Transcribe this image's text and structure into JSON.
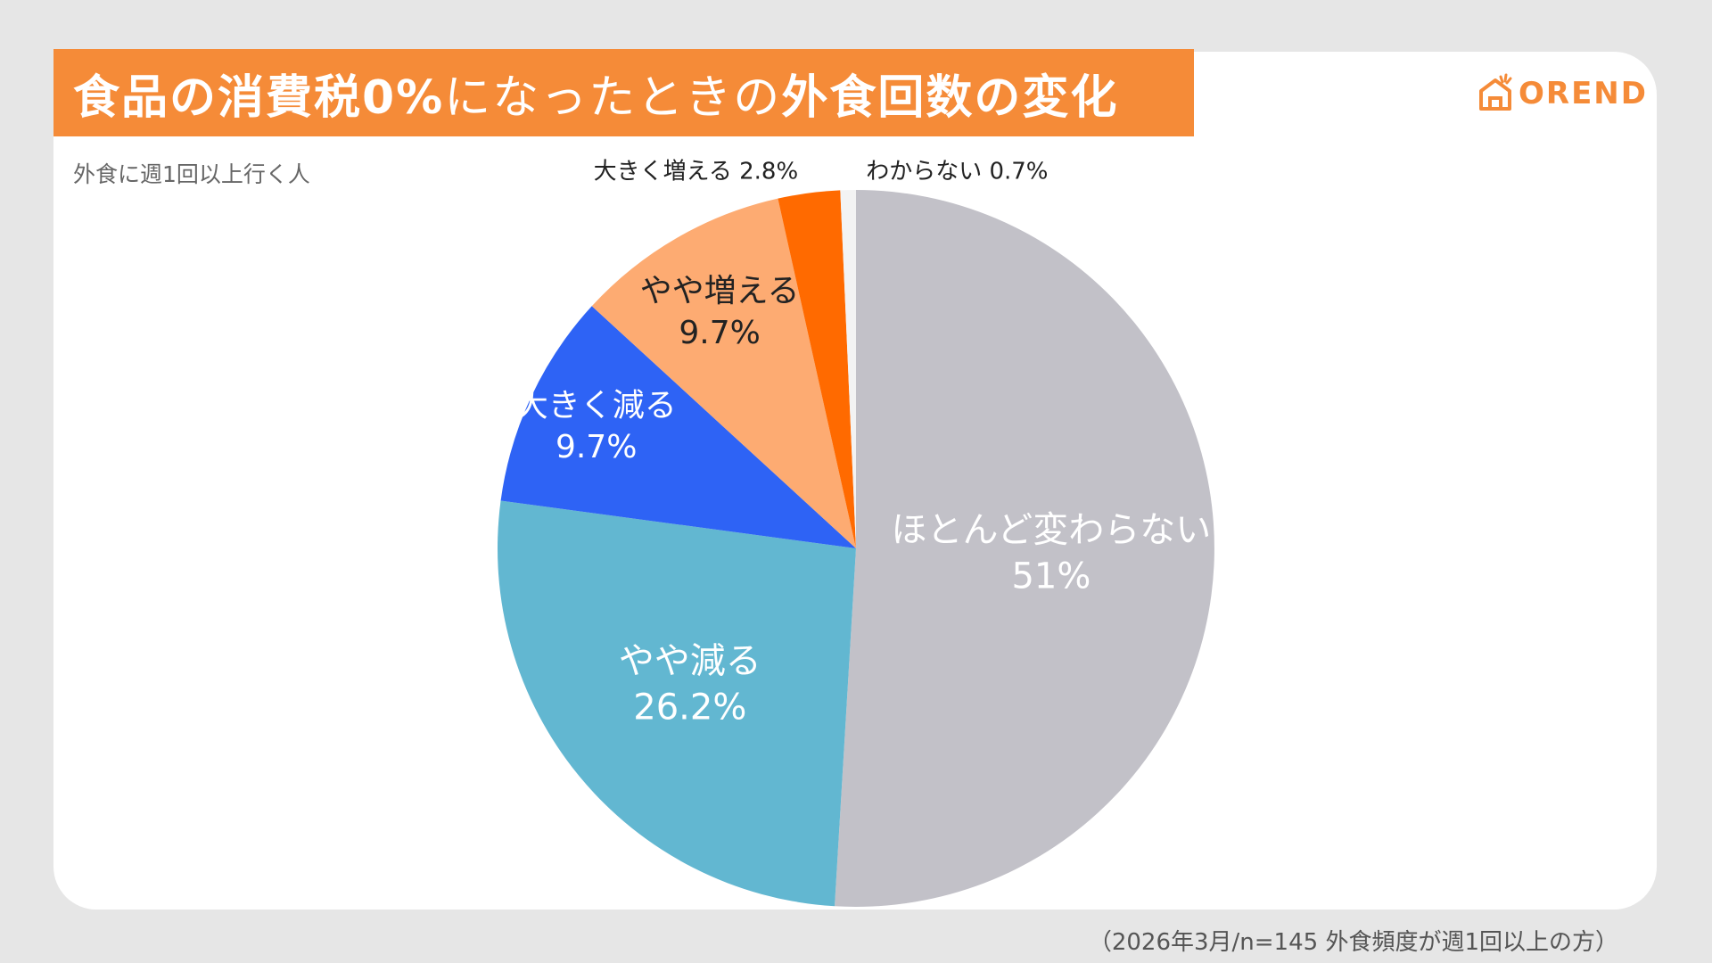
{
  "header": {
    "title_a": "食品の消費税0%",
    "title_b": "になったときの",
    "title_c": "外食回数の変化",
    "subtitle": "外食に週1回以上行く人",
    "footnote": "（2026年3月/n=145 外食頻度が週1回以上の方）"
  },
  "logo": {
    "text": "OREND",
    "icon": "house-icon"
  },
  "colors": {
    "brand": "#f58b38",
    "slices": [
      "#c2c1c8",
      "#62b7d1",
      "#2e63f5",
      "#fdab72",
      "#ff6a00",
      "#f3f3f3"
    ]
  },
  "chart_data": {
    "type": "pie",
    "title": "食品の消費税0%になったときの外食回数の変化",
    "start_angle": "12 o'clock",
    "direction": "clockwise",
    "slices": [
      {
        "label": "ほとんど変わらない",
        "value": 51,
        "display": "51%"
      },
      {
        "label": "やや減る",
        "value": 26.2,
        "display": "26.2%"
      },
      {
        "label": "大きく減る",
        "value": 9.7,
        "display": "9.7%"
      },
      {
        "label": "やや増える",
        "value": 9.7,
        "display": "9.7%"
      },
      {
        "label": "大きく増える",
        "value": 2.8,
        "display": "2.8%"
      },
      {
        "label": "わからない",
        "value": 0.7,
        "display": "0.7%"
      }
    ]
  }
}
